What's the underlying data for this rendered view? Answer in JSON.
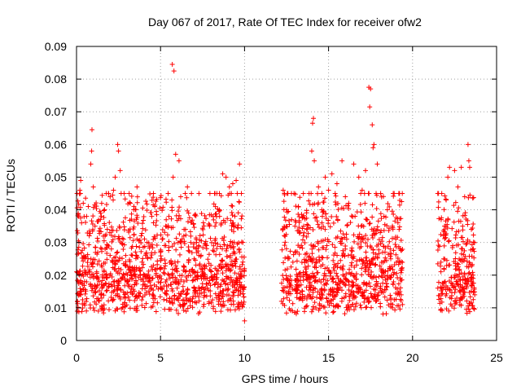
{
  "chart_data": {
    "type": "scatter",
    "title": "Day 067 of 2017, Rate Of TEC Index for receiver ofw2",
    "xlabel": "GPS time / hours",
    "ylabel": "ROTI / TECUs",
    "xlim": [
      0,
      25
    ],
    "ylim": [
      0,
      0.09
    ],
    "xticks": [
      0,
      5,
      10,
      15,
      20,
      25
    ],
    "xtick_labels": [
      "0",
      "5",
      "10",
      "15",
      "20",
      "25"
    ],
    "yticks": [
      0,
      0.01,
      0.02,
      0.03,
      0.04,
      0.05,
      0.06,
      0.07,
      0.08,
      0.09
    ],
    "ytick_labels": [
      "0",
      "0.01",
      "0.02",
      "0.03",
      "0.04",
      "0.05",
      "0.06",
      "0.07",
      "0.08",
      "0.09"
    ],
    "grid": true,
    "marker": "+",
    "color": "#ff0000",
    "data_segments_hours": [
      [
        0.0,
        10.0
      ],
      [
        12.2,
        19.4
      ],
      [
        21.5,
        23.7
      ]
    ],
    "series": [
      {
        "marker": "+",
        "color": "#ff0000",
        "points": [
          [
            0.05,
            0.012
          ],
          [
            0.1,
            0.018
          ],
          [
            0.15,
            0.03
          ],
          [
            0.2,
            0.046
          ],
          [
            0.25,
            0.049
          ],
          [
            0.3,
            0.036
          ],
          [
            0.4,
            0.042
          ],
          [
            0.5,
            0.025
          ],
          [
            0.6,
            0.038
          ],
          [
            0.7,
            0.041
          ],
          [
            0.85,
            0.054
          ],
          [
            0.9,
            0.058
          ],
          [
            0.92,
            0.0645
          ],
          [
            1.0,
            0.047
          ],
          [
            1.1,
            0.035
          ],
          [
            1.2,
            0.021
          ],
          [
            1.3,
            0.009
          ],
          [
            1.5,
            0.028
          ],
          [
            1.7,
            0.032
          ],
          [
            1.9,
            0.045
          ],
          [
            2.0,
            0.044
          ],
          [
            2.2,
            0.046
          ],
          [
            2.3,
            0.05
          ],
          [
            2.45,
            0.06
          ],
          [
            2.5,
            0.058
          ],
          [
            2.6,
            0.052
          ],
          [
            2.8,
            0.031
          ],
          [
            3.0,
            0.018
          ],
          [
            3.2,
            0.042
          ],
          [
            3.4,
            0.04
          ],
          [
            3.6,
            0.047
          ],
          [
            3.9,
            0.024
          ],
          [
            4.2,
            0.03
          ],
          [
            4.5,
            0.019
          ],
          [
            4.8,
            0.022
          ],
          [
            5.0,
            0.027
          ],
          [
            5.1,
            0.031
          ],
          [
            5.3,
            0.035
          ],
          [
            5.5,
            0.038
          ],
          [
            5.7,
            0.0845
          ],
          [
            5.8,
            0.0825
          ],
          [
            5.75,
            0.05
          ],
          [
            5.9,
            0.057
          ],
          [
            6.1,
            0.055
          ],
          [
            6.2,
            0.044
          ],
          [
            6.4,
            0.034
          ],
          [
            6.6,
            0.047
          ],
          [
            6.8,
            0.03
          ],
          [
            7.0,
            0.025
          ],
          [
            7.5,
            0.021
          ],
          [
            8.0,
            0.023
          ],
          [
            8.3,
            0.036
          ],
          [
            8.5,
            0.04
          ],
          [
            8.7,
            0.051
          ],
          [
            8.9,
            0.05
          ],
          [
            9.1,
            0.047
          ],
          [
            9.3,
            0.048
          ],
          [
            9.5,
            0.049
          ],
          [
            9.7,
            0.054
          ],
          [
            9.9,
            0.03
          ],
          [
            10.0,
            0.006
          ],
          [
            12.2,
            0.012
          ],
          [
            12.3,
            0.046
          ],
          [
            12.5,
            0.04
          ],
          [
            12.8,
            0.037
          ],
          [
            13.0,
            0.035
          ],
          [
            13.2,
            0.041
          ],
          [
            13.5,
            0.045
          ],
          [
            13.7,
            0.034
          ],
          [
            14.0,
            0.058
          ],
          [
            14.05,
            0.0665
          ],
          [
            14.1,
            0.068
          ],
          [
            14.15,
            0.055
          ],
          [
            14.4,
            0.047
          ],
          [
            14.6,
            0.04
          ],
          [
            14.8,
            0.05
          ],
          [
            15.0,
            0.046
          ],
          [
            15.2,
            0.051
          ],
          [
            15.5,
            0.048
          ],
          [
            15.8,
            0.055
          ],
          [
            16.0,
            0.044
          ],
          [
            16.2,
            0.042
          ],
          [
            16.5,
            0.054
          ],
          [
            16.8,
            0.05
          ],
          [
            17.0,
            0.046
          ],
          [
            17.2,
            0.052
          ],
          [
            17.4,
            0.0775
          ],
          [
            17.45,
            0.0715
          ],
          [
            17.5,
            0.077
          ],
          [
            17.6,
            0.066
          ],
          [
            17.65,
            0.059
          ],
          [
            17.7,
            0.06
          ],
          [
            17.9,
            0.054
          ],
          [
            18.1,
            0.045
          ],
          [
            18.3,
            0.038
          ],
          [
            18.5,
            0.04
          ],
          [
            18.8,
            0.035
          ],
          [
            19.0,
            0.031
          ],
          [
            19.2,
            0.034
          ],
          [
            19.35,
            0.0425
          ],
          [
            19.4,
            0.011
          ],
          [
            21.5,
            0.045
          ],
          [
            21.7,
            0.037
          ],
          [
            21.9,
            0.035
          ],
          [
            22.0,
            0.043
          ],
          [
            22.1,
            0.05
          ],
          [
            22.2,
            0.053
          ],
          [
            22.5,
            0.052
          ],
          [
            22.7,
            0.047
          ],
          [
            22.9,
            0.053
          ],
          [
            23.1,
            0.044
          ],
          [
            23.3,
            0.06
          ],
          [
            23.35,
            0.055
          ],
          [
            23.4,
            0.053
          ],
          [
            23.5,
            0.034
          ],
          [
            23.6,
            0.02
          ],
          [
            23.7,
            0.014
          ]
        ]
      }
    ]
  }
}
